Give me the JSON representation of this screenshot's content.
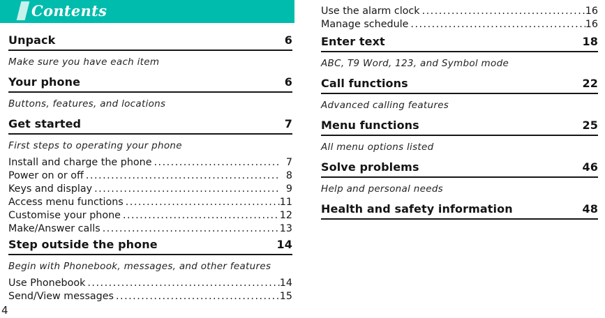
{
  "header": {
    "title": "Contents"
  },
  "footer": {
    "page_number": "4"
  },
  "colors": {
    "header_bar": "#00bcad",
    "header_slash": "#c7f1eb"
  },
  "left": {
    "sections": [
      {
        "title": "Unpack",
        "page": "6",
        "subtitle": "Make sure you have each item",
        "entries": []
      },
      {
        "title": "Your phone",
        "page": "6",
        "subtitle": "Buttons, features, and locations",
        "entries": []
      },
      {
        "title": "Get started",
        "page": "7",
        "subtitle": "First steps to operating your phone",
        "entries": [
          {
            "label": "Install and charge the phone",
            "page": "7"
          },
          {
            "label": "Power on or off",
            "page": "8"
          },
          {
            "label": "Keys and display",
            "page": "9"
          },
          {
            "label": "Access menu functions",
            "page": "11"
          },
          {
            "label": "Customise your phone",
            "page": "12"
          },
          {
            "label": "Make/Answer calls",
            "page": "13"
          }
        ]
      },
      {
        "title": "Step outside the phone",
        "page": "14",
        "subtitle": "Begin with Phonebook, messages, and other features",
        "entries": [
          {
            "label": "Use Phonebook",
            "page": "14"
          },
          {
            "label": "Send/View messages",
            "page": "15"
          }
        ]
      }
    ]
  },
  "right": {
    "leading_entries": [
      {
        "label": "Use the alarm clock",
        "page": "16"
      },
      {
        "label": "Manage schedule",
        "page": "16"
      }
    ],
    "sections": [
      {
        "title": "Enter text",
        "page": "18",
        "subtitle": "ABC, T9 Word, 123, and Symbol mode"
      },
      {
        "title": "Call functions",
        "page": "22",
        "subtitle": "Advanced calling features"
      },
      {
        "title": "Menu functions",
        "page": "25",
        "subtitle": "All menu options listed"
      },
      {
        "title": "Solve problems",
        "page": "46",
        "subtitle": "Help and personal needs"
      },
      {
        "title": "Health and safety information",
        "page": "48",
        "subtitle": ""
      }
    ]
  }
}
